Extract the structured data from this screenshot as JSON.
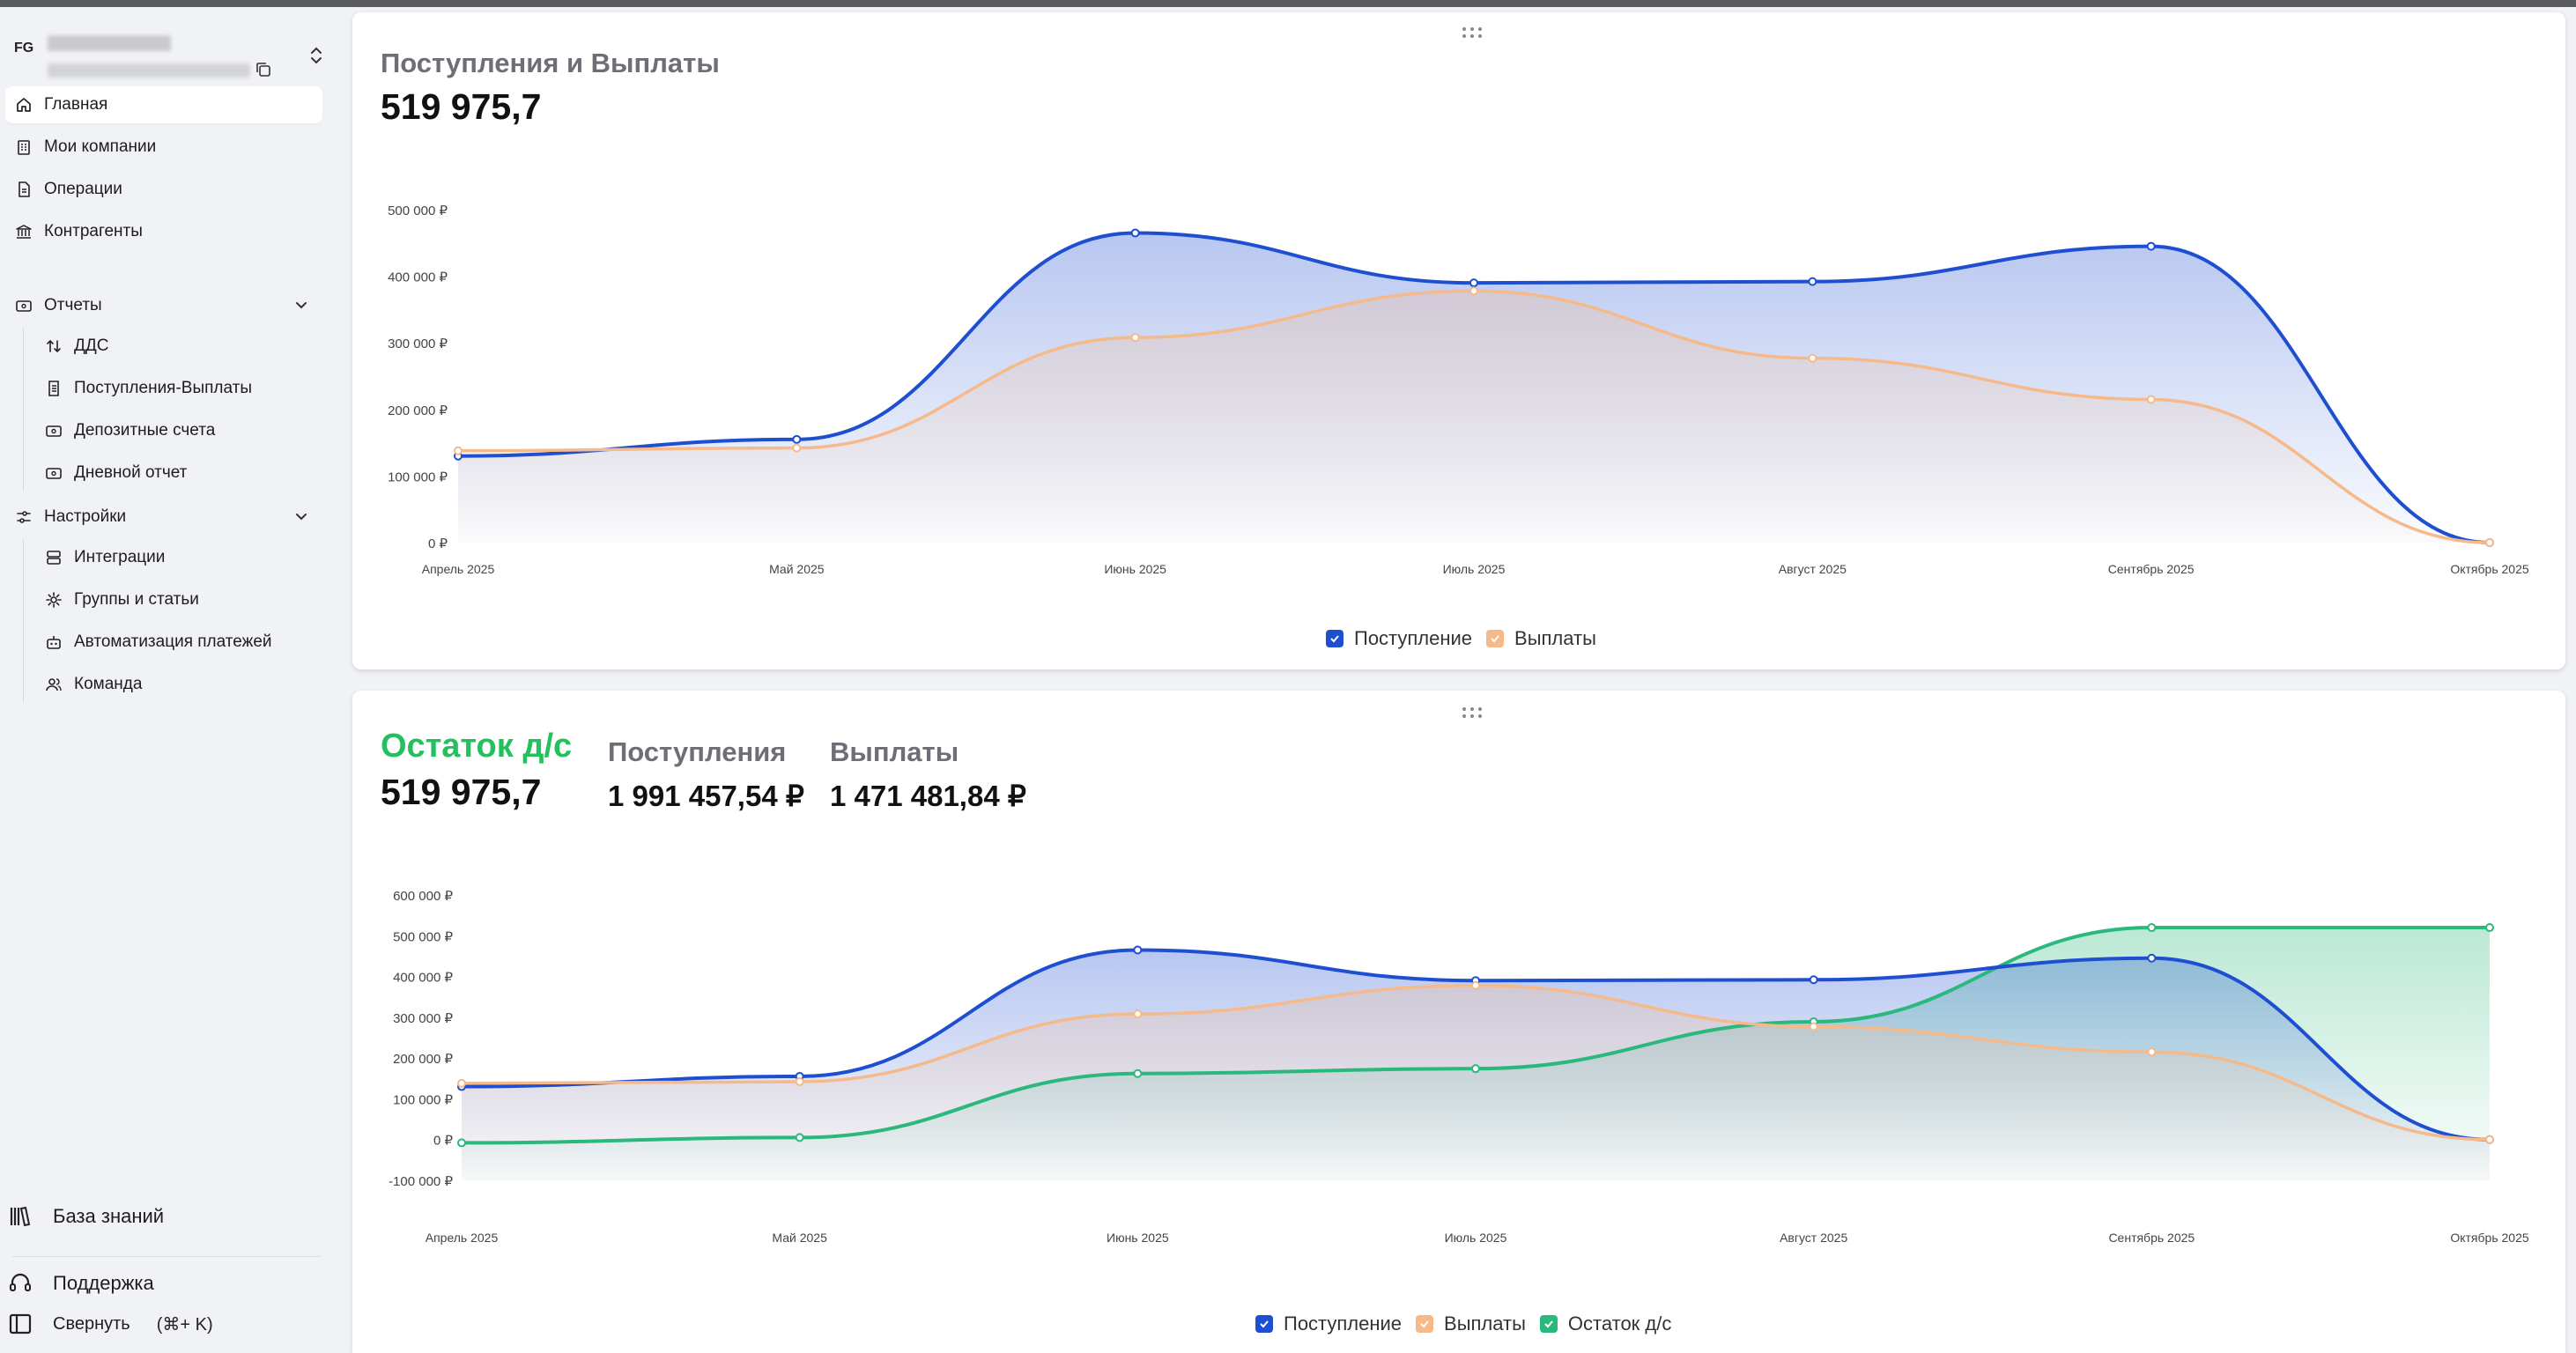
{
  "org": {
    "abbr": "FG"
  },
  "sidebar": {
    "items": [
      {
        "label": "Главная",
        "icon": "home-icon"
      },
      {
        "label": "Мои компании",
        "icon": "building-icon"
      },
      {
        "label": "Операции",
        "icon": "document-icon"
      },
      {
        "label": "Контрагенты",
        "icon": "bank-icon"
      }
    ],
    "reports": {
      "label": "Отчеты",
      "items": [
        {
          "label": "ДДС",
          "icon": "arrows-updown-icon"
        },
        {
          "label": "Поступления-Выплаты",
          "icon": "document-icon"
        },
        {
          "label": "Депозитные счета",
          "icon": "wallet-icon"
        },
        {
          "label": "Дневной отчет",
          "icon": "wallet-icon"
        }
      ]
    },
    "settings": {
      "label": "Настройки",
      "items": [
        {
          "label": "Интеграции",
          "icon": "server-icon"
        },
        {
          "label": "Группы и статьи",
          "icon": "gear-icon"
        },
        {
          "label": "Автоматизация платежей",
          "icon": "robot-icon"
        },
        {
          "label": "Команда",
          "icon": "users-icon"
        }
      ]
    },
    "knowledge": "База знаний",
    "support": "Поддержка",
    "collapse": "Свернуть",
    "collapse_shortcut": "(⌘+ K)"
  },
  "card1": {
    "title": "Поступления и Выплаты",
    "value": "519 975,7"
  },
  "card2": {
    "title": "Остаток д/с",
    "value": "519 975,7",
    "in_title": "Поступления",
    "in_value": "1 991 457,54 ₽",
    "out_title": "Выплаты",
    "out_value": "1 471 481,84 ₽"
  },
  "colors": {
    "income": "#1f4fd1",
    "payouts": "#f5b98a",
    "balance": "#2bb87c"
  },
  "chart_data": [
    {
      "type": "area",
      "categories": [
        "Апрель 2025",
        "Май 2025",
        "Июнь 2025",
        "Июль 2025",
        "Август 2025",
        "Сентябрь 2025",
        "Октябрь 2025"
      ],
      "ylim": [
        0,
        500000
      ],
      "yticks": [
        "0 ₽",
        "100 000 ₽",
        "200 000 ₽",
        "300 000 ₽",
        "400 000 ₽",
        "500 000 ₽"
      ],
      "series": [
        {
          "name": "Поступление",
          "values": [
            130000,
            155000,
            465000,
            390000,
            392000,
            445000,
            0
          ]
        },
        {
          "name": "Выплаты",
          "values": [
            138000,
            142000,
            308000,
            378000,
            277000,
            215000,
            0
          ]
        }
      ],
      "legend": "bottom-center",
      "grid": false
    },
    {
      "type": "area",
      "categories": [
        "Апрель 2025",
        "Май 2025",
        "Июнь 2025",
        "Июль 2025",
        "Август 2025",
        "Сентябрь 2025",
        "Октябрь 2025"
      ],
      "ylim": [
        -100000,
        600000
      ],
      "yticks": [
        "-100 000 ₽",
        "0 ₽",
        "100 000 ₽",
        "200 000 ₽",
        "300 000 ₽",
        "400 000 ₽",
        "500 000 ₽",
        "600 000 ₽"
      ],
      "series": [
        {
          "name": "Поступление",
          "values": [
            130000,
            155000,
            465000,
            390000,
            392000,
            445000,
            0
          ]
        },
        {
          "name": "Выплаты",
          "values": [
            138000,
            142000,
            308000,
            378000,
            277000,
            215000,
            0
          ]
        },
        {
          "name": "Остаток д/с",
          "values": [
            -8000,
            5000,
            162000,
            174000,
            289000,
            519976,
            519976
          ]
        }
      ],
      "legend": "bottom-center",
      "grid": false
    }
  ]
}
